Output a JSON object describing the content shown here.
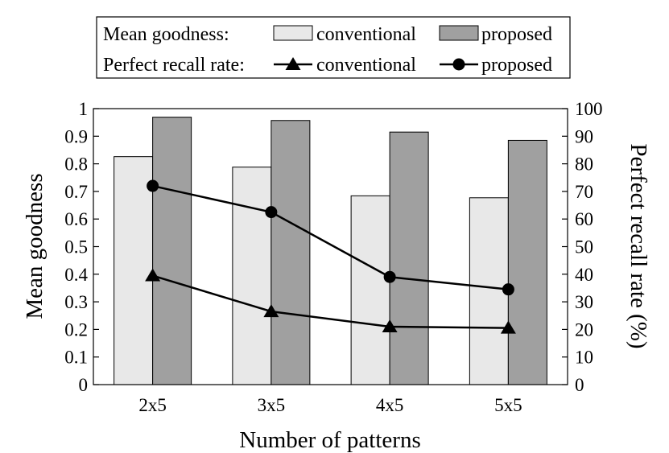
{
  "chart_data": {
    "type": "bar",
    "categories": [
      "2x5",
      "3x5",
      "4x5",
      "5x5"
    ],
    "xlabel": "Number of patterns",
    "ylabel": "Mean goodness",
    "ylabel_right": "Perfect recall rate (%)",
    "ylim": [
      0,
      1
    ],
    "ylim_right": [
      0,
      100
    ],
    "yticks": [
      "0",
      "0.1",
      "0.2",
      "0.3",
      "0.4",
      "0.5",
      "0.6",
      "0.7",
      "0.8",
      "0.9",
      "1"
    ],
    "yticks_right": [
      "0",
      "10",
      "20",
      "30",
      "40",
      "50",
      "60",
      "70",
      "80",
      "90",
      "100"
    ],
    "bar_series": [
      {
        "name": "conventional",
        "values": [
          0.826,
          0.788,
          0.684,
          0.677
        ],
        "color": "#e8e8e8"
      },
      {
        "name": "proposed",
        "values": [
          0.969,
          0.957,
          0.915,
          0.885
        ],
        "color": "#a0a0a0"
      }
    ],
    "line_series": [
      {
        "name": "conventional",
        "marker": "triangle",
        "values": [
          39.5,
          26.5,
          21.0,
          20.5
        ]
      },
      {
        "name": "proposed",
        "marker": "circle",
        "values": [
          72.0,
          62.5,
          39.0,
          34.5
        ]
      }
    ],
    "legend": {
      "position": "top",
      "bar_group_label": "Mean goodness:",
      "line_group_label": "Perfect recall rate:"
    },
    "grid": false
  }
}
